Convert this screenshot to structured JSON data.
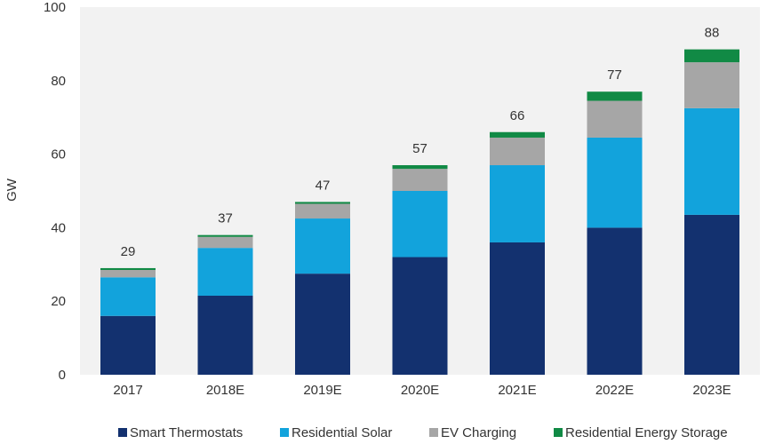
{
  "colors": {
    "Smart Thermostats": "#13316f",
    "Residential Solar": "#12a3dc",
    "EV Charging": "#a6a6a6",
    "Residential Energy Storage": "#118a45",
    "plot_background": "#f2f2f2",
    "text": "#333333"
  },
  "chart_data": {
    "type": "bar",
    "stacked": true,
    "title": "",
    "xlabel": "",
    "ylabel": "GW",
    "ylim": [
      0,
      100
    ],
    "yticks": [
      0,
      20,
      40,
      60,
      80,
      100
    ],
    "grid": false,
    "legend_position": "bottom",
    "categories": [
      "2017",
      "2018E",
      "2019E",
      "2020E",
      "2021E",
      "2022E",
      "2023E"
    ],
    "series": [
      {
        "name": "Smart Thermostats",
        "values": [
          16,
          21.5,
          27.5,
          32,
          36,
          40,
          43.5
        ]
      },
      {
        "name": "Residential Solar",
        "values": [
          10.5,
          13,
          15,
          18,
          21,
          24.5,
          29
        ]
      },
      {
        "name": "EV Charging",
        "values": [
          2,
          3,
          4,
          6,
          7.5,
          10,
          12.5
        ]
      },
      {
        "name": "Residential Energy Storage",
        "values": [
          0.5,
          0.5,
          0.5,
          1,
          1.5,
          2.5,
          3.5
        ]
      }
    ],
    "totals": [
      "29",
      "37",
      "47",
      "57",
      "66",
      "77",
      "88"
    ]
  }
}
